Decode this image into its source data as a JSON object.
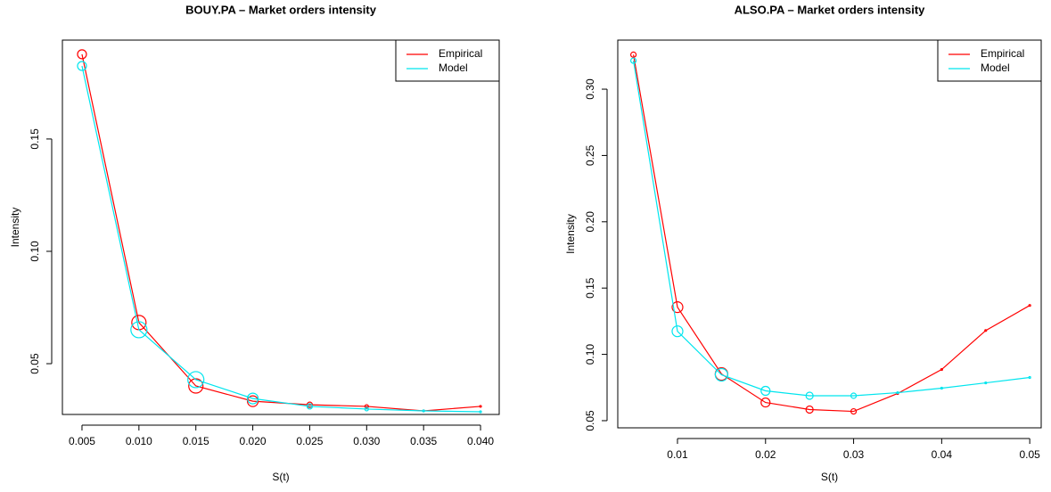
{
  "chart_data": [
    {
      "type": "line",
      "title": "BOUY.PA  – Market orders intensity",
      "x_label": "S(t)",
      "y_label": "Intensity",
      "x": [
        0.005,
        0.01,
        0.015,
        0.02,
        0.025,
        0.03,
        0.035,
        0.04
      ],
      "series": [
        {
          "name": "Empirical",
          "color": "#ff0000",
          "values": [
            0.1877,
            0.0683,
            0.0401,
            0.0333,
            0.0317,
            0.031,
            0.029,
            0.031
          ],
          "sizes": [
            5,
            8,
            8,
            6,
            3,
            2,
            1,
            1
          ]
        },
        {
          "name": "Model",
          "color": "#00e5ee",
          "values": [
            0.1825,
            0.0651,
            0.0429,
            0.0345,
            0.031,
            0.0298,
            0.029,
            0.0286
          ],
          "sizes": [
            5,
            9,
            9,
            6,
            3,
            2,
            1,
            1
          ]
        }
      ],
      "xlim": [
        0.00328,
        0.04164
      ],
      "xticks": [
        0.005,
        {
          "value": 0.01,
          "label": "0.010"
        },
        0.015,
        {
          "value": 0.02,
          "label": "0.020"
        },
        0.025,
        {
          "value": 0.03,
          "label": "0.030"
        },
        0.035,
        {
          "value": 0.04,
          "label": "0.040"
        }
      ],
      "ylim": [
        0.0274,
        0.194
      ],
      "yticks": [
        0.05,
        {
          "value": 0.1,
          "label": "0.10"
        },
        0.15
      ],
      "legend": "top-right"
    },
    {
      "type": "line",
      "title": "ALSO.PA  – Market orders intensity",
      "x_label": "S(t)",
      "y_label": "Intensity",
      "x": [
        0.005,
        0.01,
        0.015,
        0.02,
        0.025,
        0.03,
        0.035,
        0.04,
        0.045,
        0.05
      ],
      "series": [
        {
          "name": "Empirical",
          "color": "#ff0000",
          "values": [
            0.326,
            0.1356,
            0.0852,
            0.0637,
            0.0584,
            0.057,
            0.0705,
            0.0886,
            0.118,
            0.1369
          ],
          "sizes": [
            3,
            6,
            7,
            5,
            4,
            3,
            1,
            1,
            1,
            1
          ]
        },
        {
          "name": "Model",
          "color": "#00e5ee",
          "values": [
            0.3215,
            0.1174,
            0.0846,
            0.0725,
            0.0688,
            0.0688,
            0.0711,
            0.0745,
            0.0785,
            0.0826
          ],
          "sizes": [
            3,
            6,
            7,
            5,
            4,
            3,
            1,
            1,
            1,
            1
          ]
        }
      ],
      "xlim": [
        0.00322,
        0.0513
      ],
      "xticks": [
        0.01,
        0.02,
        0.03,
        0.04,
        0.05
      ],
      "ylim": [
        0.0446,
        0.337
      ],
      "yticks": [
        0.05,
        {
          "value": 0.1,
          "label": "0.10"
        },
        0.15,
        {
          "value": 0.2,
          "label": "0.20"
        },
        0.25,
        {
          "value": 0.3,
          "label": "0.30"
        }
      ],
      "legend": "top-right"
    }
  ]
}
